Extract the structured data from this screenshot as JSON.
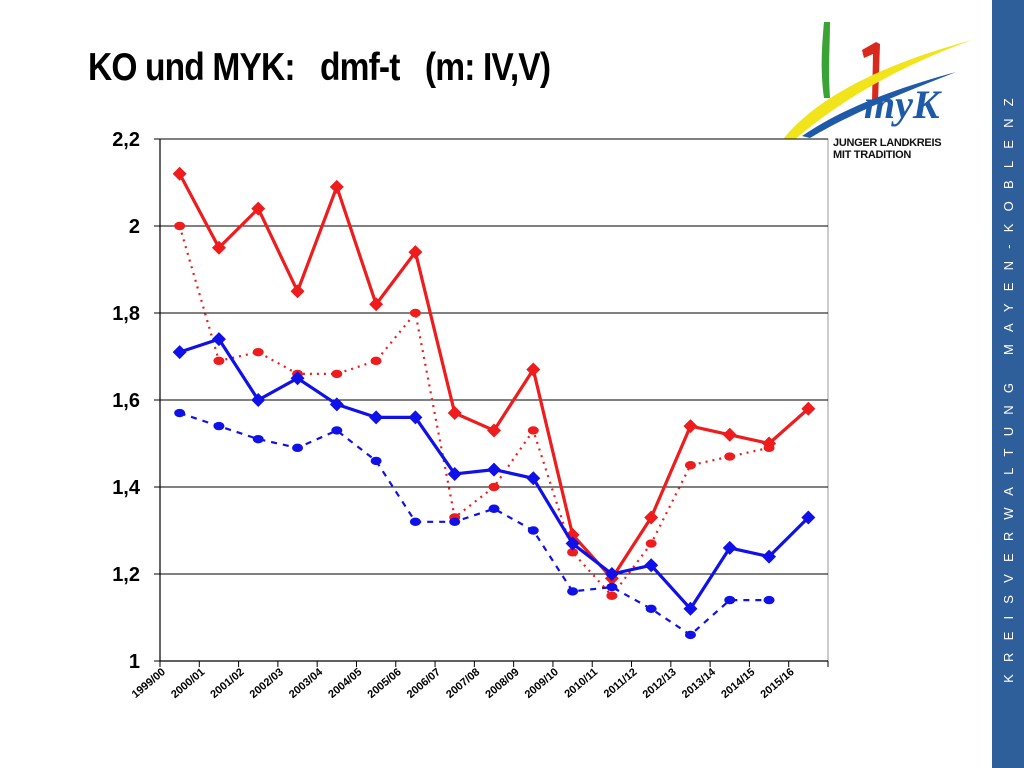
{
  "slide": {
    "title": "KO und MYK:   dmf-t   (m: IV,V)",
    "side_text": "KREISVERWALTUNG MAYEN-KOBLENZ"
  },
  "logo": {
    "line1": "JUNGER LANDKREIS",
    "line2": "MIT TRADITION",
    "wordmark": "myK",
    "colors": {
      "green": "#3aa335",
      "red": "#d9281c",
      "yellow": "#f2e41a",
      "blue": "#1f5aa8"
    }
  },
  "colors": {
    "red": "#ee1c1c",
    "blue": "#1010e8",
    "side_band": "#2f5f9a"
  },
  "chart_data": {
    "type": "line",
    "categories": [
      "1999/00",
      "2000/01",
      "2001/02",
      "2002/03",
      "2003/04",
      "2004/05",
      "2005/06",
      "2006/07",
      "2007/08",
      "2008/09",
      "2009/10",
      "2010/11",
      "2011/12",
      "2012/13",
      "2013/14",
      "2014/15",
      "2015/16"
    ],
    "ylim": [
      1,
      2.2
    ],
    "yticks": [
      "1",
      "1,2",
      "1,4",
      "1,6",
      "1,8",
      "2",
      "2,2"
    ],
    "grid": true,
    "legend": "none",
    "series": [
      {
        "style": "solid",
        "marker": "diamond",
        "color": "#ee1c1c",
        "values": [
          2.12,
          1.95,
          2.04,
          1.85,
          2.09,
          1.82,
          1.94,
          1.57,
          1.53,
          1.67,
          1.29,
          1.19,
          1.33,
          1.54,
          1.52,
          1.5,
          1.58
        ]
      },
      {
        "style": "dotted",
        "marker": "circle",
        "color": "#ee1c1c",
        "values": [
          2.0,
          1.69,
          1.71,
          1.66,
          1.66,
          1.69,
          1.8,
          1.33,
          1.4,
          1.53,
          1.25,
          1.15,
          1.27,
          1.45,
          1.47,
          1.49,
          null
        ]
      },
      {
        "style": "solid",
        "marker": "diamond",
        "color": "#1010e8",
        "values": [
          1.71,
          1.74,
          1.6,
          1.65,
          1.59,
          1.56,
          1.56,
          1.43,
          1.44,
          1.42,
          1.27,
          1.2,
          1.22,
          1.12,
          1.26,
          1.24,
          1.33
        ]
      },
      {
        "style": "dashed",
        "marker": "circle",
        "color": "#1010e8",
        "values": [
          1.57,
          1.54,
          1.51,
          1.49,
          1.53,
          1.46,
          1.32,
          1.32,
          1.35,
          1.3,
          1.16,
          1.17,
          1.12,
          1.06,
          1.14,
          1.14,
          null
        ]
      }
    ]
  }
}
